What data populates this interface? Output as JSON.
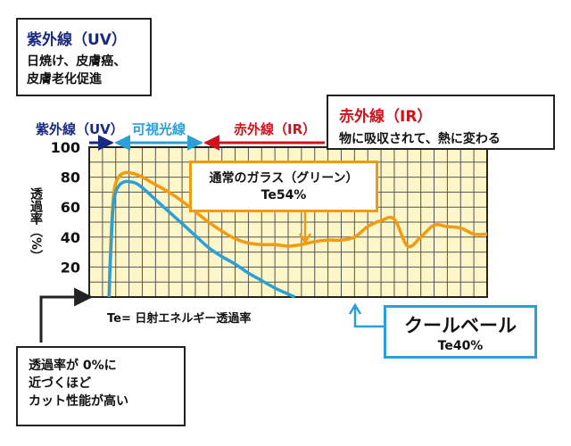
{
  "uv_box": {
    "title": "紫外線（UV）",
    "desc_line1": "日焼け、皮膚癌、",
    "desc_line2": "皮膚老化促進"
  },
  "ir_box": {
    "title": "赤外線（IR）",
    "desc": "物に吸収されて、熱に変わる"
  },
  "glass_box": {
    "line1": "通常のガラス（グリーン）",
    "line2": "Te54%"
  },
  "cool_box": {
    "name": "クールベール",
    "te": "Te40%"
  },
  "cut_box": {
    "line1": "透過率が 0%に",
    "line2": "近づくほど",
    "line3": "カット性能が高い"
  },
  "note": "Te= 日射エネルギー透過率",
  "bands": {
    "uv": "紫外線（UV）",
    "visible": "可視光線",
    "ir": "赤外線（IR）"
  },
  "colors": {
    "uv": "#1a2a80",
    "visible": "#2a9fd8",
    "ir": "#d0121b",
    "glass": "#f29a10",
    "coolveil": "#2a9fd8",
    "plot_bg": "#fdf6c8",
    "grid": "#333333"
  },
  "chart_data": {
    "type": "line",
    "ylabel": "透過率（%）",
    "xlim": [
      0,
      30
    ],
    "ylim": [
      0,
      100
    ],
    "yticks": [
      20,
      40,
      60,
      80,
      100
    ],
    "grid": true,
    "series": [
      {
        "name": "通常のガラス（グリーン）",
        "x": [
          1.5,
          1.6,
          1.8,
          2.0,
          2.3,
          2.7,
          3.0,
          3.5,
          4.0,
          5.0,
          6.0,
          7.0,
          8.0,
          9.0,
          10.0,
          11.0,
          12.0,
          13.0,
          14.0,
          15.0,
          16.0,
          17.0,
          18.0,
          19.0,
          20.0,
          21.0,
          22.0,
          23.0,
          24.0,
          25.0,
          26.0,
          27.0,
          28.0,
          29.0,
          30.0
        ],
        "values": [
          0,
          30,
          65,
          76,
          81,
          83,
          83,
          82,
          80,
          75,
          70,
          64,
          57,
          50,
          44,
          39,
          36,
          35,
          35,
          34,
          35,
          37,
          38,
          38,
          40,
          47,
          51,
          52,
          34,
          40,
          48,
          47,
          46,
          42,
          42
        ]
      },
      {
        "name": "クールベール",
        "x": [
          1.5,
          1.6,
          1.8,
          2.0,
          2.3,
          2.7,
          3.0,
          3.5,
          4.0,
          5.0,
          6.0,
          7.0,
          8.0,
          9.0,
          10.0,
          11.0,
          12.0,
          13.0,
          14.0,
          15.0,
          15.5
        ],
        "values": [
          0,
          25,
          60,
          70,
          75,
          77,
          77,
          76,
          73,
          65,
          57,
          49,
          41,
          33,
          27,
          22,
          16,
          11,
          6,
          2,
          0
        ]
      }
    ]
  }
}
